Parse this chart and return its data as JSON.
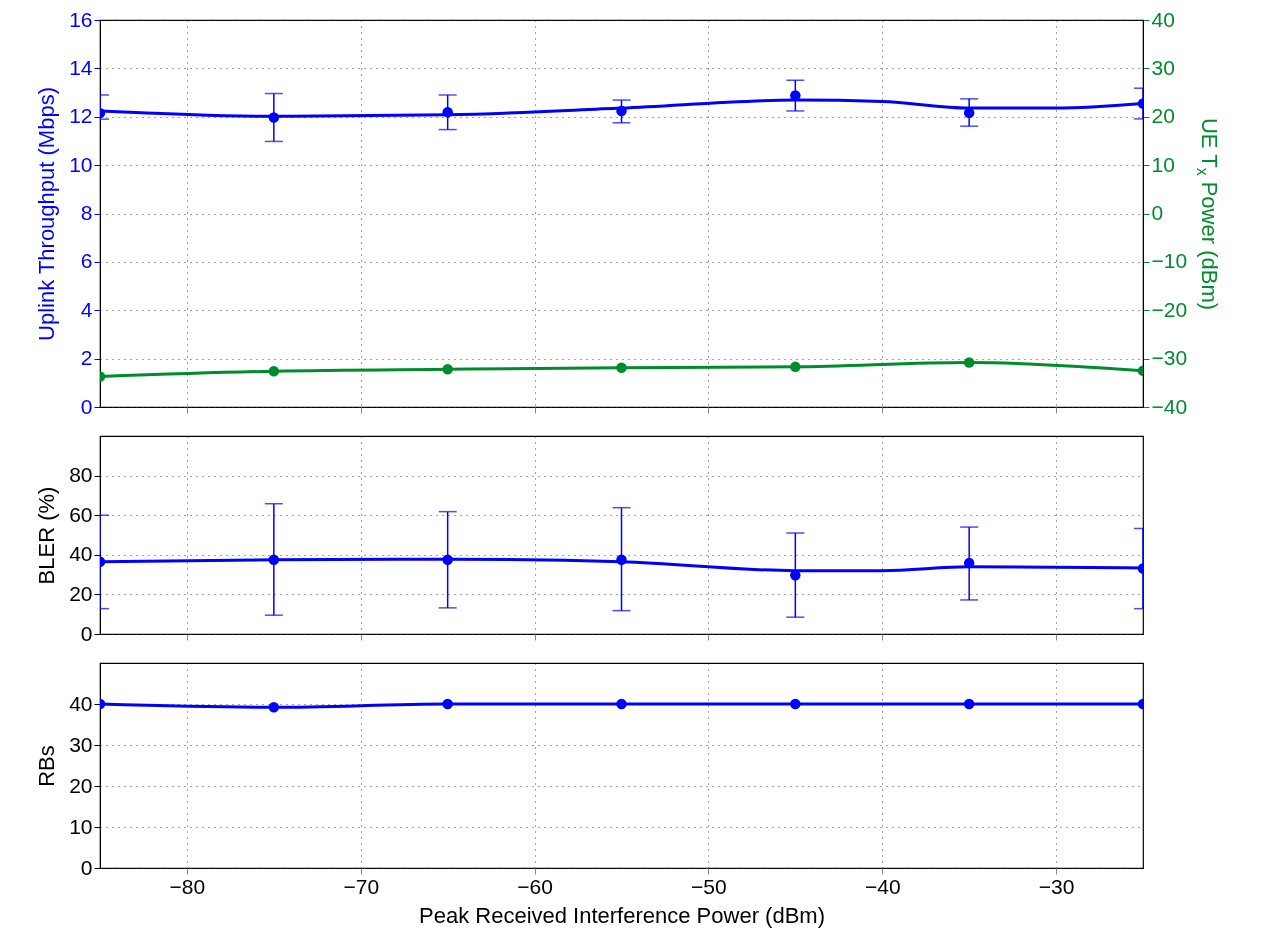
{
  "chart_data": [
    {
      "type": "line",
      "ylabel": "Uplink Throughput (Mbps)",
      "y2label": "UE T$_{x}$ Power (dBm)",
      "xlim": [
        -85,
        -25
      ],
      "xticks": [
        -80,
        -70,
        -60,
        -50,
        -40,
        -30
      ],
      "ylim": [
        0,
        16
      ],
      "yticks": [
        0,
        2,
        4,
        6,
        8,
        10,
        12,
        14,
        16
      ],
      "y2lim": [
        -40,
        40
      ],
      "y2ticks": [
        -40,
        -30,
        -20,
        -10,
        0,
        10,
        20,
        30,
        40
      ],
      "tick_labels": "y",
      "grid": true,
      "marker": "circle",
      "x": [
        -85,
        -75,
        -65,
        -55,
        -45,
        -35,
        -25
      ],
      "series": [
        {
          "type": "scatter",
          "color": "#0000ff",
          "values": [
            12.15,
            11.97,
            12.19,
            12.24,
            12.88,
            12.16,
            12.55
          ],
          "errors": [
            [
              11.9,
              12.9
            ],
            [
              10.98,
              12.96
            ],
            [
              11.47,
              12.9
            ],
            [
              11.75,
              12.69
            ],
            [
              12.24,
              13.51
            ],
            [
              11.61,
              12.74
            ],
            [
              11.91,
              13.18
            ]
          ]
        },
        {
          "color": "#0000ff",
          "marker": "none",
          "x": [
            -85,
            -75,
            -65,
            -55,
            -45,
            -40,
            -35,
            -30,
            -25
          ],
          "values": [
            12.24,
            12.02,
            12.08,
            12.36,
            12.69,
            12.63,
            12.36,
            12.36,
            12.55
          ]
        },
        {
          "color": "#008c2d",
          "axis": "y2",
          "values": [
            -33.7,
            -32.6,
            -32.2,
            -31.9,
            -31.7,
            -30.8,
            -32.5
          ]
        }
      ]
    },
    {
      "type": "line",
      "ylabel": "BLER (%)",
      "xlim": [
        -85,
        -25
      ],
      "xticks": [
        -80,
        -70,
        -60,
        -50,
        -40,
        -30
      ],
      "ylim": [
        0,
        100
      ],
      "yticks": [
        0,
        20,
        40,
        60,
        80
      ],
      "tick_labels": "y",
      "grid": true,
      "marker": "circle",
      "x": [
        -85,
        -75,
        -65,
        -55,
        -45,
        -35,
        -25
      ],
      "series": [
        {
          "type": "scatter",
          "color": "#0000ff",
          "values": [
            36.5,
            37.5,
            37.5,
            37.5,
            29.7,
            35.8,
            33.1
          ],
          "errors": [
            [
              12.8,
              60
            ],
            [
              9.5,
              65.8
            ],
            [
              13.2,
              61.8
            ],
            [
              11.8,
              63.8
            ],
            [
              8.5,
              51
            ],
            [
              17.2,
              54
            ],
            [
              12.8,
              53.3
            ]
          ]
        },
        {
          "color": "#0000ff",
          "marker": "none",
          "x": [
            -85,
            -75,
            -65,
            -55,
            -45,
            -40,
            -35,
            -25
          ],
          "values": [
            36.5,
            37.5,
            37.8,
            36.5,
            32,
            32,
            34,
            33.3
          ]
        }
      ]
    },
    {
      "type": "line",
      "ylabel": "RBs",
      "xlabel": "Peak Received Interference Power (dBm)",
      "xlim": [
        -85,
        -25
      ],
      "xticks": [
        -80,
        -70,
        -60,
        -50,
        -40,
        -30
      ],
      "ylim": [
        0,
        50
      ],
      "yticks": [
        0,
        10,
        20,
        30,
        40
      ],
      "grid": true,
      "marker": "circle",
      "x": [
        -85,
        -75,
        -65,
        -55,
        -45,
        -35,
        -25
      ],
      "series": [
        {
          "color": "#0000ff",
          "values": [
            40,
            39.2,
            40,
            40,
            40,
            40,
            40
          ]
        }
      ]
    }
  ]
}
